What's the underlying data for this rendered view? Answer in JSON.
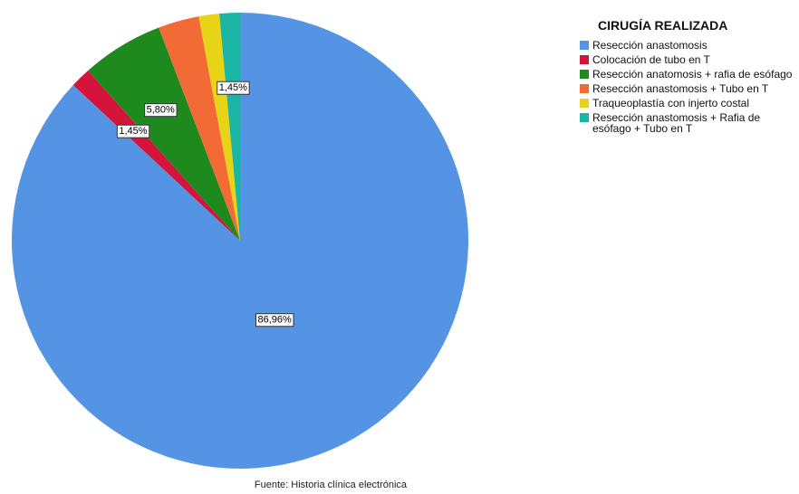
{
  "chart_data": {
    "type": "pie",
    "title": "CIRUGÍA REALIZADA",
    "categories": [
      "Resección anastomosis",
      "Colocación de tubo en T",
      "Resección anatomosis + rafia de esófago",
      "Resección anastomosis + Tubo en T",
      "Traqueoplastía con injerto costal",
      "Resección anastomosis + Rafia de esófago + Tubo en T"
    ],
    "values": [
      86.96,
      1.45,
      5.8,
      2.9,
      1.45,
      1.45
    ],
    "value_labels": [
      "86,96%",
      "1,45%",
      "5,80%",
      null,
      null,
      "1,45%"
    ],
    "colors": [
      "#5594e4",
      "#d5143c",
      "#1e8a1e",
      "#f26b36",
      "#e8d417",
      "#1ab5a5"
    ],
    "source": "Fuente: Historia clínica electrónica"
  }
}
